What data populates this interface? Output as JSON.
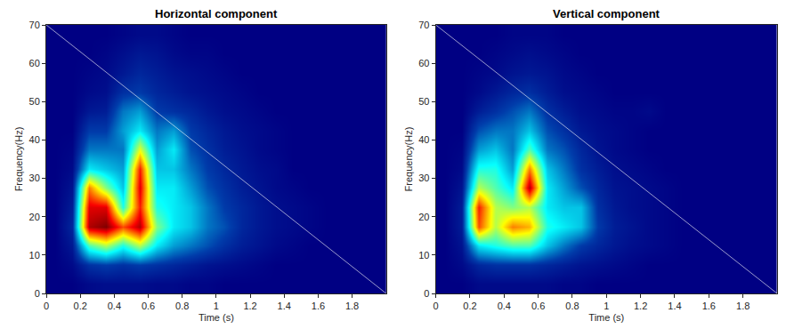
{
  "chart_data": [
    {
      "type": "heatmap",
      "title": "Horizontal component",
      "x_label": "Time (s)",
      "y_label": "Frequency(Hz)",
      "color": "Jet",
      "zlim": [
        0,
        1
      ],
      "xlim": [
        0,
        2
      ],
      "xticks": [
        0,
        0.2,
        0.4,
        0.6,
        0.8,
        1,
        1.2,
        1.4,
        1.6,
        1.8
      ],
      "ylim": [
        0,
        70
      ],
      "yticks": [
        0,
        10,
        20,
        30,
        40,
        50,
        60,
        70
      ],
      "x": [
        0.05,
        0.15,
        0.25,
        0.35,
        0.45,
        0.55,
        0.65,
        0.75,
        0.85,
        0.95,
        1.05,
        1.15,
        1.25,
        1.35,
        1.45,
        1.55,
        1.65,
        1.75,
        1.85,
        1.95
      ],
      "y": [
        2.5,
        7.5,
        12.5,
        17.5,
        22.5,
        27.5,
        32.5,
        37.5,
        42.5,
        47.5,
        52.5,
        57.5,
        62.5,
        67.5
      ],
      "z": [
        [
          0,
          0,
          0.02,
          0.03,
          0.03,
          0.03,
          0.02,
          0.02,
          0.01,
          0.01,
          0,
          0,
          0,
          0,
          0,
          0,
          0,
          0,
          0,
          0
        ],
        [
          0,
          0.02,
          0.1,
          0.12,
          0.1,
          0.12,
          0.1,
          0.08,
          0.06,
          0.04,
          0.03,
          0.02,
          0.01,
          0,
          0,
          0,
          0,
          0,
          0,
          0
        ],
        [
          0,
          0.05,
          0.45,
          0.55,
          0.4,
          0.55,
          0.35,
          0.25,
          0.2,
          0.15,
          0.1,
          0.06,
          0.04,
          0.02,
          0.01,
          0,
          0,
          0,
          0,
          0
        ],
        [
          0,
          0.08,
          0.95,
          1,
          0.8,
          0.95,
          0.5,
          0.35,
          0.3,
          0.2,
          0.15,
          0.08,
          0.05,
          0.03,
          0.02,
          0.01,
          0,
          0,
          0,
          0
        ],
        [
          0,
          0.06,
          0.9,
          0.9,
          0.4,
          0.85,
          0.4,
          0.35,
          0.3,
          0.2,
          0.12,
          0.08,
          0.05,
          0.03,
          0.02,
          0.01,
          0,
          0,
          0,
          0
        ],
        [
          0,
          0.04,
          0.75,
          0.5,
          0.3,
          0.9,
          0.35,
          0.35,
          0.25,
          0.15,
          0.1,
          0.06,
          0.04,
          0.02,
          0.01,
          0,
          0,
          0,
          0,
          0
        ],
        [
          0,
          0.02,
          0.35,
          0.3,
          0.25,
          0.85,
          0.3,
          0.3,
          0.2,
          0.12,
          0.08,
          0.05,
          0.03,
          0.02,
          0,
          0,
          0,
          0,
          0,
          0
        ],
        [
          0,
          0.01,
          0.2,
          0.2,
          0.2,
          0.6,
          0.25,
          0.35,
          0.15,
          0.1,
          0.06,
          0.04,
          0.02,
          0.01,
          0,
          0,
          0,
          0,
          0,
          0
        ],
        [
          0,
          0,
          0.12,
          0.12,
          0.25,
          0.35,
          0.2,
          0.25,
          0.12,
          0.08,
          0.05,
          0.03,
          0.02,
          0.01,
          0,
          0,
          0,
          0,
          0,
          0
        ],
        [
          0,
          0,
          0.05,
          0.06,
          0.2,
          0.25,
          0.12,
          0.1,
          0.08,
          0.05,
          0.03,
          0.02,
          0.01,
          0,
          0,
          0,
          0,
          0,
          0,
          0
        ],
        [
          0,
          0,
          0.02,
          0.03,
          0.1,
          0.12,
          0.08,
          0.06,
          0.04,
          0.03,
          0.02,
          0.01,
          0,
          0,
          0,
          0,
          0,
          0,
          0,
          0
        ],
        [
          0,
          0,
          0.01,
          0.02,
          0.05,
          0.08,
          0.06,
          0.04,
          0.03,
          0.02,
          0.01,
          0,
          0,
          0,
          0,
          0,
          0,
          0,
          0,
          0
        ],
        [
          0,
          0,
          0,
          0.01,
          0.03,
          0.05,
          0.04,
          0.02,
          0.01,
          0.01,
          0,
          0,
          0,
          0,
          0,
          0,
          0,
          0,
          0,
          0
        ],
        [
          0,
          0,
          0,
          0,
          0.01,
          0.02,
          0.02,
          0.01,
          0,
          0,
          0,
          0,
          0,
          0,
          0,
          0,
          0,
          0,
          0,
          0
        ]
      ],
      "line": {
        "x": [
          0,
          2
        ],
        "y": [
          70,
          0
        ],
        "color": "#ffffff"
      }
    },
    {
      "type": "heatmap",
      "title": "Vertical component",
      "x_label": "Time (s)",
      "y_label": "Frequency(Hz)",
      "color": "Jet",
      "zlim": [
        0,
        1
      ],
      "xlim": [
        0,
        2
      ],
      "xticks": [
        0,
        0.2,
        0.4,
        0.6,
        0.8,
        1,
        1.2,
        1.4,
        1.6,
        1.8
      ],
      "ylim": [
        0,
        70
      ],
      "yticks": [
        0,
        10,
        20,
        30,
        40,
        50,
        60,
        70
      ],
      "x": [
        0.05,
        0.15,
        0.25,
        0.35,
        0.45,
        0.55,
        0.65,
        0.75,
        0.85,
        0.95,
        1.05,
        1.15,
        1.25,
        1.35,
        1.45,
        1.55,
        1.65,
        1.75,
        1.85,
        1.95
      ],
      "y": [
        2.5,
        7.5,
        12.5,
        17.5,
        22.5,
        27.5,
        32.5,
        37.5,
        42.5,
        47.5,
        52.5,
        57.5,
        62.5,
        67.5
      ],
      "z": [
        [
          0,
          0,
          0.02,
          0.02,
          0.02,
          0.02,
          0.02,
          0.01,
          0.01,
          0,
          0,
          0,
          0,
          0,
          0,
          0,
          0,
          0,
          0,
          0
        ],
        [
          0,
          0.02,
          0.08,
          0.1,
          0.1,
          0.1,
          0.08,
          0.06,
          0.04,
          0.03,
          0.02,
          0.01,
          0,
          0,
          0,
          0,
          0,
          0,
          0,
          0
        ],
        [
          0,
          0.04,
          0.35,
          0.4,
          0.45,
          0.45,
          0.3,
          0.2,
          0.12,
          0.08,
          0.05,
          0.03,
          0.02,
          0.01,
          0,
          0,
          0,
          0,
          0,
          0
        ],
        [
          0,
          0.06,
          0.8,
          0.55,
          0.75,
          0.7,
          0.4,
          0.35,
          0.3,
          0.12,
          0.06,
          0.04,
          0.02,
          0.01,
          0,
          0,
          0,
          0,
          0,
          0
        ],
        [
          0,
          0.06,
          0.85,
          0.55,
          0.5,
          0.55,
          0.35,
          0.3,
          0.3,
          0.1,
          0.05,
          0.03,
          0.02,
          0.01,
          0,
          0,
          0,
          0,
          0,
          0
        ],
        [
          0,
          0.04,
          0.55,
          0.45,
          0.35,
          0.95,
          0.35,
          0.25,
          0.15,
          0.08,
          0.04,
          0.03,
          0.02,
          0.01,
          0,
          0,
          0,
          0,
          0,
          0
        ],
        [
          0,
          0.02,
          0.4,
          0.4,
          0.25,
          0.75,
          0.3,
          0.2,
          0.1,
          0.06,
          0.03,
          0.02,
          0.01,
          0,
          0,
          0,
          0,
          0,
          0,
          0
        ],
        [
          0,
          0.01,
          0.25,
          0.3,
          0.2,
          0.45,
          0.2,
          0.15,
          0.08,
          0.04,
          0.02,
          0.01,
          0,
          0,
          0,
          0,
          0,
          0,
          0,
          0
        ],
        [
          0,
          0,
          0.15,
          0.2,
          0.2,
          0.3,
          0.15,
          0.1,
          0.05,
          0.03,
          0.02,
          0.01,
          0,
          0,
          0,
          0,
          0,
          0,
          0,
          0
        ],
        [
          0,
          0,
          0.06,
          0.1,
          0.15,
          0.2,
          0.1,
          0.06,
          0.03,
          0.02,
          0.01,
          0.01,
          0.02,
          0,
          0,
          0,
          0,
          0,
          0,
          0
        ],
        [
          0,
          0,
          0.02,
          0.05,
          0.08,
          0.1,
          0.06,
          0.03,
          0.02,
          0.01,
          0,
          0,
          0,
          0,
          0,
          0,
          0,
          0,
          0,
          0
        ],
        [
          0,
          0,
          0.01,
          0.02,
          0.04,
          0.05,
          0.04,
          0.02,
          0.01,
          0,
          0,
          0,
          0,
          0,
          0,
          0,
          0,
          0,
          0,
          0
        ],
        [
          0,
          0,
          0,
          0.01,
          0.02,
          0.03,
          0.02,
          0.01,
          0,
          0,
          0,
          0,
          0,
          0,
          0,
          0,
          0,
          0,
          0,
          0
        ],
        [
          0,
          0,
          0,
          0,
          0.01,
          0.01,
          0.01,
          0,
          0,
          0,
          0,
          0,
          0,
          0,
          0,
          0,
          0,
          0,
          0,
          0
        ]
      ],
      "line": {
        "x": [
          0,
          2
        ],
        "y": [
          70,
          0
        ],
        "color": "#ffffff"
      }
    }
  ]
}
